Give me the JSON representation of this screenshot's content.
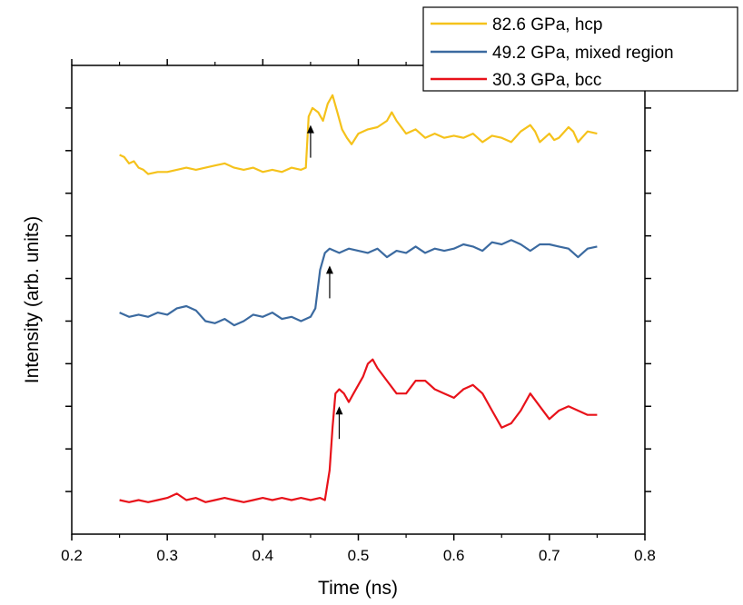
{
  "chart_data": {
    "type": "line",
    "xlabel": "Time (ns)",
    "ylabel": "Intensity (arb. units)",
    "xlim": [
      0.2,
      0.8
    ],
    "xticks": [
      "0.2",
      "0.3",
      "0.4",
      "0.5",
      "0.6",
      "0.7",
      "0.8"
    ],
    "y_tick_labels_shown": false,
    "grid": false,
    "legend_position": "top-right",
    "annotations": "upward arrows mark the onset of each intensity jump",
    "series": [
      {
        "name": "82.6 GPa, hcp",
        "color": "#f5c21b",
        "arrow_x": 0.45,
        "points": [
          [
            0.25,
            8.9
          ],
          [
            0.255,
            8.85
          ],
          [
            0.26,
            8.7
          ],
          [
            0.265,
            8.75
          ],
          [
            0.27,
            8.6
          ],
          [
            0.275,
            8.55
          ],
          [
            0.28,
            8.45
          ],
          [
            0.29,
            8.5
          ],
          [
            0.3,
            8.5
          ],
          [
            0.31,
            8.55
          ],
          [
            0.32,
            8.6
          ],
          [
            0.33,
            8.55
          ],
          [
            0.34,
            8.6
          ],
          [
            0.35,
            8.65
          ],
          [
            0.36,
            8.7
          ],
          [
            0.37,
            8.6
          ],
          [
            0.38,
            8.55
          ],
          [
            0.39,
            8.6
          ],
          [
            0.4,
            8.5
          ],
          [
            0.41,
            8.55
          ],
          [
            0.42,
            8.5
          ],
          [
            0.43,
            8.6
          ],
          [
            0.44,
            8.55
          ],
          [
            0.445,
            8.6
          ],
          [
            0.448,
            9.8
          ],
          [
            0.452,
            10.0
          ],
          [
            0.458,
            9.9
          ],
          [
            0.463,
            9.7
          ],
          [
            0.468,
            10.1
          ],
          [
            0.473,
            10.3
          ],
          [
            0.478,
            9.9
          ],
          [
            0.483,
            9.5
          ],
          [
            0.488,
            9.3
          ],
          [
            0.493,
            9.15
          ],
          [
            0.5,
            9.4
          ],
          [
            0.51,
            9.5
          ],
          [
            0.52,
            9.55
          ],
          [
            0.53,
            9.7
          ],
          [
            0.535,
            9.9
          ],
          [
            0.54,
            9.7
          ],
          [
            0.55,
            9.4
          ],
          [
            0.56,
            9.5
          ],
          [
            0.57,
            9.3
          ],
          [
            0.58,
            9.4
          ],
          [
            0.59,
            9.3
          ],
          [
            0.6,
            9.35
          ],
          [
            0.61,
            9.3
          ],
          [
            0.62,
            9.4
          ],
          [
            0.63,
            9.2
          ],
          [
            0.64,
            9.35
          ],
          [
            0.65,
            9.3
          ],
          [
            0.66,
            9.2
          ],
          [
            0.67,
            9.45
          ],
          [
            0.68,
            9.6
          ],
          [
            0.685,
            9.45
          ],
          [
            0.69,
            9.2
          ],
          [
            0.7,
            9.4
          ],
          [
            0.705,
            9.25
          ],
          [
            0.71,
            9.3
          ],
          [
            0.72,
            9.55
          ],
          [
            0.725,
            9.45
          ],
          [
            0.73,
            9.2
          ],
          [
            0.74,
            9.45
          ],
          [
            0.75,
            9.4
          ]
        ]
      },
      {
        "name": "49.2 GPa, mixed region",
        "color": "#3b6aa0",
        "arrow_x": 0.47,
        "points": [
          [
            0.25,
            5.2
          ],
          [
            0.26,
            5.1
          ],
          [
            0.27,
            5.15
          ],
          [
            0.28,
            5.1
          ],
          [
            0.29,
            5.2
          ],
          [
            0.3,
            5.15
          ],
          [
            0.31,
            5.3
          ],
          [
            0.32,
            5.35
          ],
          [
            0.33,
            5.25
          ],
          [
            0.34,
            5.0
          ],
          [
            0.35,
            4.95
          ],
          [
            0.36,
            5.05
          ],
          [
            0.37,
            4.9
          ],
          [
            0.38,
            5.0
          ],
          [
            0.39,
            5.15
          ],
          [
            0.4,
            5.1
          ],
          [
            0.41,
            5.2
          ],
          [
            0.42,
            5.05
          ],
          [
            0.43,
            5.1
          ],
          [
            0.44,
            5.0
          ],
          [
            0.45,
            5.1
          ],
          [
            0.455,
            5.3
          ],
          [
            0.46,
            6.2
          ],
          [
            0.465,
            6.6
          ],
          [
            0.47,
            6.7
          ],
          [
            0.48,
            6.6
          ],
          [
            0.49,
            6.7
          ],
          [
            0.5,
            6.65
          ],
          [
            0.51,
            6.6
          ],
          [
            0.52,
            6.7
          ],
          [
            0.53,
            6.5
          ],
          [
            0.54,
            6.65
          ],
          [
            0.55,
            6.6
          ],
          [
            0.56,
            6.75
          ],
          [
            0.57,
            6.6
          ],
          [
            0.58,
            6.7
          ],
          [
            0.59,
            6.65
          ],
          [
            0.6,
            6.7
          ],
          [
            0.61,
            6.8
          ],
          [
            0.62,
            6.75
          ],
          [
            0.63,
            6.65
          ],
          [
            0.64,
            6.85
          ],
          [
            0.65,
            6.8
          ],
          [
            0.66,
            6.9
          ],
          [
            0.67,
            6.8
          ],
          [
            0.68,
            6.65
          ],
          [
            0.69,
            6.8
          ],
          [
            0.7,
            6.8
          ],
          [
            0.71,
            6.75
          ],
          [
            0.72,
            6.7
          ],
          [
            0.73,
            6.5
          ],
          [
            0.74,
            6.7
          ],
          [
            0.75,
            6.75
          ]
        ]
      },
      {
        "name": "30.3 GPa, bcc",
        "color": "#e8121a",
        "arrow_x": 0.48,
        "points": [
          [
            0.25,
            0.8
          ],
          [
            0.26,
            0.75
          ],
          [
            0.27,
            0.8
          ],
          [
            0.28,
            0.75
          ],
          [
            0.29,
            0.8
          ],
          [
            0.3,
            0.85
          ],
          [
            0.31,
            0.95
          ],
          [
            0.32,
            0.8
          ],
          [
            0.33,
            0.85
          ],
          [
            0.34,
            0.75
          ],
          [
            0.35,
            0.8
          ],
          [
            0.36,
            0.85
          ],
          [
            0.37,
            0.8
          ],
          [
            0.38,
            0.75
          ],
          [
            0.39,
            0.8
          ],
          [
            0.4,
            0.85
          ],
          [
            0.41,
            0.8
          ],
          [
            0.42,
            0.85
          ],
          [
            0.43,
            0.8
          ],
          [
            0.44,
            0.85
          ],
          [
            0.45,
            0.8
          ],
          [
            0.46,
            0.85
          ],
          [
            0.465,
            0.8
          ],
          [
            0.47,
            1.5
          ],
          [
            0.473,
            2.5
          ],
          [
            0.476,
            3.3
          ],
          [
            0.48,
            3.4
          ],
          [
            0.485,
            3.3
          ],
          [
            0.49,
            3.1
          ],
          [
            0.495,
            3.3
          ],
          [
            0.5,
            3.5
          ],
          [
            0.505,
            3.7
          ],
          [
            0.51,
            4.0
          ],
          [
            0.515,
            4.1
          ],
          [
            0.52,
            3.9
          ],
          [
            0.53,
            3.6
          ],
          [
            0.54,
            3.3
          ],
          [
            0.55,
            3.3
          ],
          [
            0.56,
            3.6
          ],
          [
            0.57,
            3.6
          ],
          [
            0.58,
            3.4
          ],
          [
            0.59,
            3.3
          ],
          [
            0.6,
            3.2
          ],
          [
            0.61,
            3.4
          ],
          [
            0.62,
            3.5
          ],
          [
            0.63,
            3.3
          ],
          [
            0.64,
            2.9
          ],
          [
            0.65,
            2.5
          ],
          [
            0.66,
            2.6
          ],
          [
            0.67,
            2.9
          ],
          [
            0.68,
            3.3
          ],
          [
            0.69,
            3.0
          ],
          [
            0.7,
            2.7
          ],
          [
            0.71,
            2.9
          ],
          [
            0.72,
            3.0
          ],
          [
            0.73,
            2.9
          ],
          [
            0.74,
            2.8
          ],
          [
            0.75,
            2.8
          ]
        ]
      }
    ]
  }
}
